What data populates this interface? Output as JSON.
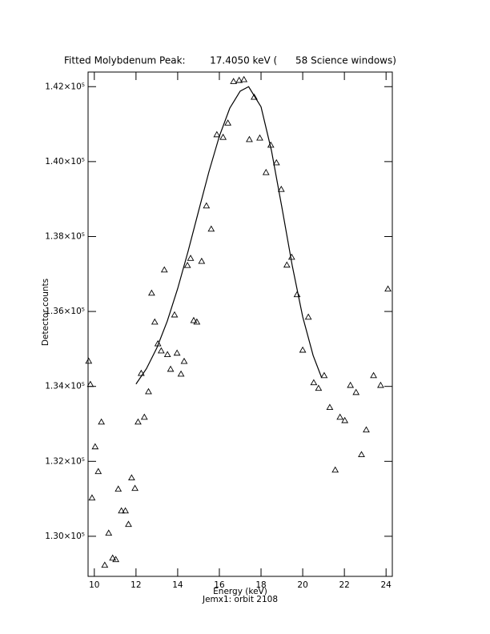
{
  "chart_data": {
    "type": "scatter",
    "title": "Fitted Molybdenum Peak:        17.4050 keV (      58 Science windows)",
    "x_label": "Energy (keV)",
    "y_label": "Detector counts",
    "footer": "Jemx1: orbit 2108",
    "xlim": [
      9.7,
      24.3
    ],
    "ylim": [
      128930,
      142390
    ],
    "xticks": [
      10,
      12,
      14,
      16,
      18,
      20,
      22,
      24
    ],
    "yticks": [
      {
        "value": 130000,
        "label": "1.30×10⁵"
      },
      {
        "value": 132000,
        "label": "1.32×10⁵"
      },
      {
        "value": 134000,
        "label": "1.34×10⁵"
      },
      {
        "value": 136000,
        "label": "1.36×10⁵"
      },
      {
        "value": 138000,
        "label": "1.38×10⁵"
      },
      {
        "value": 140000,
        "label": "1.40×10⁵"
      },
      {
        "value": 142000,
        "label": "1.42×10⁵"
      }
    ],
    "color": "#000000",
    "points": {
      "x": [
        9.73,
        9.81,
        9.89,
        10.04,
        10.19,
        10.34,
        10.5,
        10.69,
        10.88,
        11.03,
        11.15,
        11.3,
        11.49,
        11.64,
        11.79,
        11.95,
        12.1,
        12.25,
        12.4,
        12.6,
        12.75,
        12.9,
        13.05,
        13.21,
        13.36,
        13.51,
        13.66,
        13.85,
        13.97,
        14.16,
        14.31,
        14.47,
        14.62,
        14.77,
        14.92,
        15.15,
        15.38,
        15.61,
        15.88,
        16.18,
        16.41,
        16.68,
        16.95,
        17.18,
        17.44,
        17.67,
        17.94,
        18.24,
        18.47,
        18.74,
        18.97,
        19.24,
        19.47,
        19.73,
        20.0,
        20.27,
        20.53,
        20.76,
        21.03,
        21.3,
        21.56,
        21.79,
        22.02,
        22.29,
        22.56,
        22.82,
        23.05,
        23.4,
        23.74,
        24.09
      ],
      "y": [
        134675,
        134055,
        131025,
        132390,
        131730,
        133050,
        129230,
        130085,
        129420,
        129380,
        131260,
        130680,
        130680,
        130320,
        131560,
        131280,
        133050,
        134350,
        133180,
        133860,
        136490,
        135720,
        135140,
        134950,
        137110,
        134850,
        134460,
        135910,
        134890,
        134330,
        134670,
        137230,
        137420,
        135760,
        135720,
        137340,
        138820,
        138200,
        140720,
        140650,
        141030,
        142140,
        142170,
        142190,
        140590,
        141720,
        140630,
        139710,
        140440,
        139970,
        139260,
        137240,
        137450,
        136450,
        134970,
        135850,
        134100,
        133950,
        134290,
        133440,
        131770,
        133180,
        133090,
        134030,
        133840,
        132180,
        132840,
        134290,
        134030,
        136600
      ]
    },
    "fit": {
      "x": [
        12,
        12.5,
        13,
        13.5,
        14,
        14.5,
        15,
        15.5,
        16,
        16.5,
        17,
        17.405,
        18,
        18.5,
        19,
        19.5,
        20,
        20.5,
        20.9
      ],
      "y": [
        134063,
        134472,
        135027,
        135741,
        136611,
        137607,
        138674,
        139730,
        140678,
        141426,
        141880,
        142000,
        141461,
        140295,
        138781,
        137216,
        135858,
        134825,
        134244
      ]
    }
  }
}
